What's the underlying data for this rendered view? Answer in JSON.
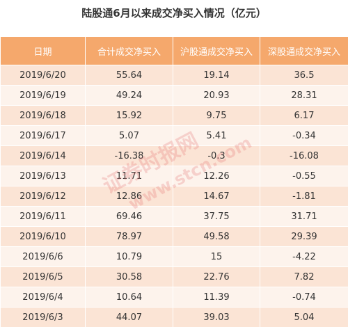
{
  "title": "陆股通6月以来成交净买入情况（亿元）",
  "table": {
    "header": [
      "日期",
      "合计成交净买入",
      "沪股通成交净买入",
      "深股通成交净买入"
    ],
    "rows": [
      [
        "2019/6/20",
        "55.64",
        "19.14",
        "36.5"
      ],
      [
        "2019/6/19",
        "49.24",
        "20.93",
        "28.31"
      ],
      [
        "2019/6/18",
        "15.92",
        "9.75",
        "6.17"
      ],
      [
        "2019/6/17",
        "5.07",
        "5.41",
        "-0.34"
      ],
      [
        "2019/6/14",
        "-16.38",
        "-0.3",
        "-16.08"
      ],
      [
        "2019/6/13",
        "11.71",
        "12.26",
        "-0.55"
      ],
      [
        "2019/6/12",
        "12.86",
        "14.67",
        "-1.81"
      ],
      [
        "2019/6/11",
        "69.46",
        "37.75",
        "31.71"
      ],
      [
        "2019/6/10",
        "78.97",
        "49.58",
        "29.39"
      ],
      [
        "2019/6/6",
        "10.79",
        "15",
        "-4.22"
      ],
      [
        "2019/6/5",
        "30.58",
        "22.76",
        "7.82"
      ],
      [
        "2019/6/4",
        "10.64",
        "11.39",
        "-0.74"
      ],
      [
        "2019/6/3",
        "44.07",
        "39.03",
        "5.04"
      ]
    ]
  },
  "watermark": [
    "证券时报网",
    "www.stcn.com"
  ]
}
